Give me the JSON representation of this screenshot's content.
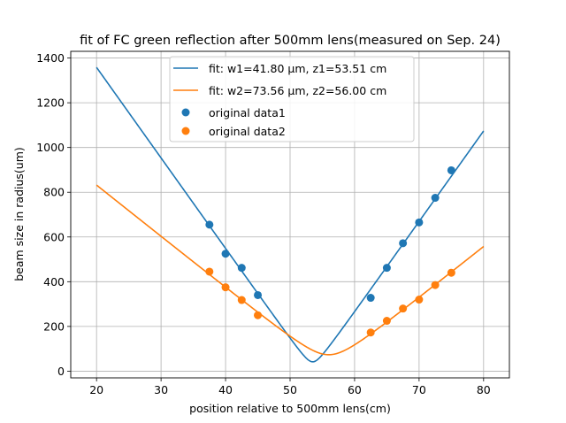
{
  "chart_data": {
    "type": "scatter",
    "title": "fit of FC green reflection after 500mm lens(measured on Sep. 24)",
    "xlabel": "position relative to 500mm lens(cm)",
    "ylabel": "beam size in radius(um)",
    "xlim": [
      16,
      84
    ],
    "ylim": [
      -30,
      1430
    ],
    "xticks": [
      20,
      30,
      40,
      50,
      60,
      70,
      80
    ],
    "yticks": [
      0,
      200,
      400,
      600,
      800,
      1000,
      1200,
      1400
    ],
    "grid": true,
    "legend_position": "top-center",
    "series": [
      {
        "name": "fit: w1=41.80 μm, z1=53.51 cm",
        "kind": "line",
        "color": "#1f77b4",
        "fit": {
          "w0_um": 41.8,
          "z0_cm": 53.51,
          "wavelength_um": 0.532,
          "x_start": 20,
          "x_end": 80
        }
      },
      {
        "name": "fit: w2=73.56 μm, z2=56.00 cm",
        "kind": "line",
        "color": "#ff7f0e",
        "fit": {
          "w0_um": 73.56,
          "z0_cm": 56.0,
          "wavelength_um": 0.532,
          "x_start": 20,
          "x_end": 80
        }
      },
      {
        "name": "original data1",
        "kind": "points",
        "color": "#1f77b4",
        "x": [
          37.5,
          40,
          42.5,
          45,
          62.5,
          65,
          67.5,
          70,
          72.5,
          75
        ],
        "y": [
          655,
          525,
          462,
          340,
          328,
          462,
          572,
          665,
          775,
          898
        ]
      },
      {
        "name": "original data2",
        "kind": "points",
        "color": "#ff7f0e",
        "x": [
          37.5,
          40,
          42.5,
          45,
          62.5,
          65,
          67.5,
          70,
          72.5,
          75
        ],
        "y": [
          445,
          375,
          318,
          250,
          173,
          225,
          280,
          320,
          385,
          440
        ]
      }
    ]
  }
}
